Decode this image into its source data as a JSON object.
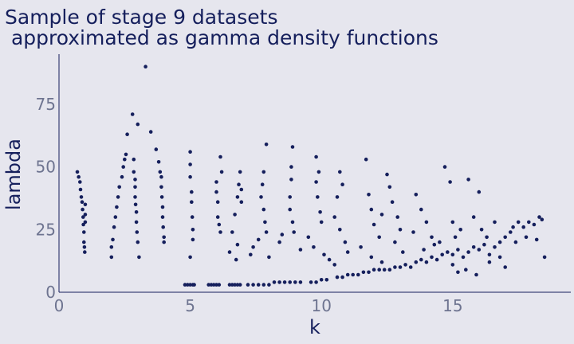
{
  "colors": {
    "background": "#E6E6EE",
    "points": "#151F5C",
    "text": "#151F5C",
    "tick_text": "#6E7490"
  },
  "chart_data": {
    "type": "scatter",
    "title_lines": [
      "Sample of stage 9 datasets",
      " approximated as gamma density functions"
    ],
    "xlabel": "k",
    "ylabel": "lambda",
    "xlim": [
      0,
      19.5
    ],
    "ylim": [
      0,
      95
    ],
    "xticks": [
      0,
      5,
      10,
      15
    ],
    "yticks": [
      0,
      25,
      50,
      75
    ],
    "grid": false,
    "legend": "none",
    "points": [
      [
        0.7,
        48
      ],
      [
        0.75,
        46
      ],
      [
        0.8,
        44
      ],
      [
        0.82,
        41
      ],
      [
        0.85,
        38
      ],
      [
        0.88,
        36
      ],
      [
        0.9,
        33
      ],
      [
        0.92,
        30
      ],
      [
        0.93,
        27
      ],
      [
        0.95,
        24
      ],
      [
        0.95,
        20
      ],
      [
        0.97,
        18
      ],
      [
        0.98,
        16
      ],
      [
        1.0,
        35
      ],
      [
        1.0,
        31
      ],
      [
        1.0,
        28
      ],
      [
        2.0,
        14
      ],
      [
        2.0,
        18
      ],
      [
        2.05,
        21
      ],
      [
        2.1,
        26
      ],
      [
        2.15,
        30
      ],
      [
        2.2,
        34
      ],
      [
        2.25,
        38
      ],
      [
        2.3,
        42
      ],
      [
        2.4,
        46
      ],
      [
        2.45,
        50
      ],
      [
        2.5,
        53
      ],
      [
        2.55,
        55
      ],
      [
        2.6,
        63
      ],
      [
        2.8,
        71
      ],
      [
        2.85,
        53
      ],
      [
        2.85,
        48
      ],
      [
        2.9,
        45
      ],
      [
        2.9,
        42
      ],
      [
        2.9,
        38
      ],
      [
        2.92,
        35
      ],
      [
        2.95,
        32
      ],
      [
        2.95,
        28
      ],
      [
        2.97,
        24
      ],
      [
        3.0,
        67
      ],
      [
        3.0,
        20
      ],
      [
        3.05,
        14
      ],
      [
        3.3,
        90
      ],
      [
        3.5,
        64
      ],
      [
        3.7,
        57
      ],
      [
        3.8,
        52
      ],
      [
        3.85,
        48
      ],
      [
        3.9,
        46
      ],
      [
        3.9,
        42
      ],
      [
        3.92,
        38
      ],
      [
        3.95,
        34
      ],
      [
        3.95,
        30
      ],
      [
        3.97,
        26
      ],
      [
        4.0,
        22
      ],
      [
        4.0,
        20
      ],
      [
        4.8,
        3
      ],
      [
        4.9,
        3
      ],
      [
        5.0,
        3
      ],
      [
        5.1,
        3
      ],
      [
        5.15,
        3
      ],
      [
        5.0,
        56
      ],
      [
        5.0,
        51
      ],
      [
        5.0,
        46
      ],
      [
        5.05,
        40
      ],
      [
        5.05,
        36
      ],
      [
        5.08,
        30
      ],
      [
        5.1,
        25
      ],
      [
        5.1,
        21
      ],
      [
        5.0,
        14
      ],
      [
        5.7,
        3
      ],
      [
        5.8,
        3
      ],
      [
        5.9,
        3
      ],
      [
        6.0,
        3
      ],
      [
        6.1,
        3
      ],
      [
        6.15,
        54
      ],
      [
        6.2,
        48
      ],
      [
        6.0,
        44
      ],
      [
        6.0,
        40
      ],
      [
        6.05,
        36
      ],
      [
        6.05,
        30
      ],
      [
        6.1,
        27
      ],
      [
        6.15,
        24
      ],
      [
        6.5,
        3
      ],
      [
        6.6,
        3
      ],
      [
        6.7,
        3
      ],
      [
        6.8,
        3
      ],
      [
        6.9,
        3
      ],
      [
        6.5,
        16
      ],
      [
        6.6,
        24
      ],
      [
        6.7,
        31
      ],
      [
        6.8,
        38
      ],
      [
        6.85,
        43
      ],
      [
        6.9,
        48
      ],
      [
        6.95,
        41
      ],
      [
        6.95,
        36
      ],
      [
        6.8,
        19
      ],
      [
        6.75,
        13
      ],
      [
        7.2,
        3
      ],
      [
        7.4,
        3
      ],
      [
        7.6,
        3
      ],
      [
        7.8,
        3
      ],
      [
        8.0,
        3
      ],
      [
        8.2,
        4
      ],
      [
        8.4,
        4
      ],
      [
        7.9,
        59
      ],
      [
        7.8,
        48
      ],
      [
        7.75,
        43
      ],
      [
        7.7,
        38
      ],
      [
        7.8,
        33
      ],
      [
        7.85,
        28
      ],
      [
        7.9,
        24
      ],
      [
        7.4,
        18
      ],
      [
        7.6,
        21
      ],
      [
        7.3,
        15
      ],
      [
        8.0,
        14
      ],
      [
        8.6,
        4
      ],
      [
        8.8,
        4
      ],
      [
        9.0,
        4
      ],
      [
        9.2,
        4
      ],
      [
        8.9,
        58
      ],
      [
        8.85,
        50
      ],
      [
        8.85,
        45
      ],
      [
        8.8,
        38
      ],
      [
        8.8,
        33
      ],
      [
        8.9,
        28
      ],
      [
        8.95,
        24
      ],
      [
        8.4,
        20
      ],
      [
        8.5,
        23
      ],
      [
        9.2,
        17
      ],
      [
        9.6,
        4
      ],
      [
        9.8,
        4
      ],
      [
        10.0,
        5
      ],
      [
        10.2,
        5
      ],
      [
        9.8,
        54
      ],
      [
        9.9,
        48
      ],
      [
        9.8,
        44
      ],
      [
        9.85,
        38
      ],
      [
        9.95,
        32
      ],
      [
        10.0,
        28
      ],
      [
        9.5,
        22
      ],
      [
        9.7,
        18
      ],
      [
        10.1,
        15
      ],
      [
        10.5,
        11
      ],
      [
        10.6,
        6
      ],
      [
        10.8,
        6
      ],
      [
        11.0,
        7
      ],
      [
        11.2,
        7
      ],
      [
        10.7,
        48
      ],
      [
        10.8,
        43
      ],
      [
        10.6,
        38
      ],
      [
        10.5,
        30
      ],
      [
        10.7,
        25
      ],
      [
        10.9,
        20
      ],
      [
        11.0,
        16
      ],
      [
        10.3,
        13
      ],
      [
        11.4,
        7
      ],
      [
        11.6,
        8
      ],
      [
        11.8,
        8
      ],
      [
        12.0,
        9
      ],
      [
        12.2,
        9
      ],
      [
        11.7,
        53
      ],
      [
        11.8,
        39
      ],
      [
        11.9,
        33
      ],
      [
        12.0,
        27
      ],
      [
        12.2,
        22
      ],
      [
        11.5,
        18
      ],
      [
        11.9,
        14
      ],
      [
        12.3,
        12
      ],
      [
        12.4,
        9
      ],
      [
        12.6,
        9
      ],
      [
        12.8,
        10
      ],
      [
        13.0,
        10
      ],
      [
        13.2,
        11
      ],
      [
        12.5,
        47
      ],
      [
        12.6,
        42
      ],
      [
        12.7,
        36
      ],
      [
        12.9,
        30
      ],
      [
        13.0,
        25
      ],
      [
        12.8,
        20
      ],
      [
        13.1,
        16
      ],
      [
        12.3,
        31
      ],
      [
        13.4,
        10
      ],
      [
        13.6,
        12
      ],
      [
        13.8,
        13
      ],
      [
        14.0,
        12
      ],
      [
        14.2,
        14
      ],
      [
        13.6,
        39
      ],
      [
        13.8,
        33
      ],
      [
        14.0,
        28
      ],
      [
        14.2,
        22
      ],
      [
        13.9,
        17
      ],
      [
        14.3,
        19
      ],
      [
        13.5,
        24
      ],
      [
        14.4,
        13
      ],
      [
        14.6,
        15
      ],
      [
        14.8,
        16
      ],
      [
        15.0,
        15
      ],
      [
        15.2,
        17
      ],
      [
        14.7,
        50
      ],
      [
        14.9,
        44
      ],
      [
        15.0,
        28
      ],
      [
        15.1,
        22
      ],
      [
        15.3,
        25
      ],
      [
        14.5,
        20
      ],
      [
        15.0,
        11
      ],
      [
        15.2,
        8
      ],
      [
        15.4,
        14
      ],
      [
        15.6,
        16
      ],
      [
        15.8,
        18
      ],
      [
        16.0,
        17
      ],
      [
        16.2,
        19
      ],
      [
        15.6,
        45
      ],
      [
        16.0,
        40
      ],
      [
        15.8,
        30
      ],
      [
        16.1,
        25
      ],
      [
        16.3,
        22
      ],
      [
        15.5,
        9
      ],
      [
        16.4,
        12
      ],
      [
        15.9,
        7
      ],
      [
        16.4,
        15
      ],
      [
        16.6,
        18
      ],
      [
        16.8,
        20
      ],
      [
        17.0,
        22
      ],
      [
        17.2,
        24
      ],
      [
        16.8,
        14
      ],
      [
        17.0,
        10
      ],
      [
        16.6,
        28
      ],
      [
        17.3,
        26
      ],
      [
        17.5,
        28
      ],
      [
        17.7,
        26
      ],
      [
        17.9,
        28
      ],
      [
        18.1,
        27
      ],
      [
        18.3,
        30
      ],
      [
        18.4,
        29
      ],
      [
        18.5,
        14
      ],
      [
        18.2,
        21
      ],
      [
        17.8,
        22
      ],
      [
        17.4,
        20
      ]
    ]
  }
}
